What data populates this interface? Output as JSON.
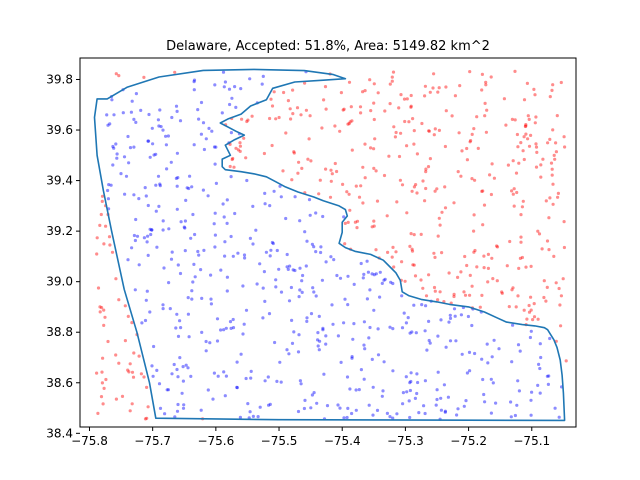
{
  "chart_data": {
    "type": "scatter",
    "title": "Delaware, Accepted: 51.8%, Area: 5149.82 km^2",
    "xlabel": "",
    "ylabel": "",
    "xlim": [
      -75.815,
      -75.03
    ],
    "ylim": [
      38.425,
      39.885
    ],
    "x_ticks": [
      -75.8,
      -75.7,
      -75.6,
      -75.5,
      -75.4,
      -75.3,
      -75.2,
      -75.1
    ],
    "y_ticks": [
      38.4,
      38.6,
      38.8,
      39.0,
      39.2,
      39.4,
      39.6,
      39.8
    ],
    "x_tick_labels": [
      "−75.8",
      "−75.7",
      "−75.6",
      "−75.5",
      "−75.4",
      "−75.3",
      "−75.2",
      "−75.1"
    ],
    "y_tick_labels": [
      "38.4",
      "38.6",
      "38.8",
      "39.0",
      "39.2",
      "39.4",
      "39.6",
      "39.8"
    ],
    "grid": false,
    "colors": {
      "accepted": "#0000ff",
      "rejected": "#ff0000",
      "boundary": "#1f77b4"
    },
    "point_alpha": 0.45,
    "boundary": [
      [
        -75.788,
        39.723
      ],
      [
        -75.772,
        39.723
      ],
      [
        -75.74,
        39.77
      ],
      [
        -75.69,
        39.81
      ],
      [
        -75.62,
        39.836
      ],
      [
        -75.54,
        39.84
      ],
      [
        -75.46,
        39.835
      ],
      [
        -75.415,
        39.82
      ],
      [
        -75.395,
        39.803
      ],
      [
        -75.43,
        39.797
      ],
      [
        -75.475,
        39.79
      ],
      [
        -75.51,
        39.765
      ],
      [
        -75.52,
        39.72
      ],
      [
        -75.545,
        39.695
      ],
      [
        -75.56,
        39.663
      ],
      [
        -75.58,
        39.645
      ],
      [
        -75.593,
        39.628
      ],
      [
        -75.568,
        39.595
      ],
      [
        -75.555,
        39.58
      ],
      [
        -75.57,
        39.562
      ],
      [
        -75.585,
        39.54
      ],
      [
        -75.577,
        39.5
      ],
      [
        -75.59,
        39.485
      ],
      [
        -75.59,
        39.455
      ],
      [
        -75.585,
        39.443
      ],
      [
        -75.56,
        39.435
      ],
      [
        -75.54,
        39.427
      ],
      [
        -75.52,
        39.415
      ],
      [
        -75.505,
        39.395
      ],
      [
        -75.49,
        39.375
      ],
      [
        -75.47,
        39.355
      ],
      [
        -75.445,
        39.335
      ],
      [
        -75.43,
        39.32
      ],
      [
        -75.405,
        39.3
      ],
      [
        -75.395,
        39.285
      ],
      [
        -75.392,
        39.26
      ],
      [
        -75.4,
        39.235
      ],
      [
        -75.4,
        39.195
      ],
      [
        -75.405,
        39.152
      ],
      [
        -75.395,
        39.135
      ],
      [
        -75.38,
        39.12
      ],
      [
        -75.355,
        39.108
      ],
      [
        -75.335,
        39.085
      ],
      [
        -75.325,
        39.06
      ],
      [
        -75.315,
        39.035
      ],
      [
        -75.308,
        39.005
      ],
      [
        -75.305,
        38.96
      ],
      [
        -75.295,
        38.945
      ],
      [
        -75.275,
        38.93
      ],
      [
        -75.25,
        38.92
      ],
      [
        -75.23,
        38.91
      ],
      [
        -75.2,
        38.9
      ],
      [
        -75.175,
        38.88
      ],
      [
        -75.155,
        38.857
      ],
      [
        -75.14,
        38.84
      ],
      [
        -75.115,
        38.83
      ],
      [
        -75.095,
        38.825
      ],
      [
        -75.08,
        38.818
      ],
      [
        -75.075,
        38.81
      ],
      [
        -75.07,
        38.79
      ],
      [
        -75.065,
        38.77
      ],
      [
        -75.06,
        38.74
      ],
      [
        -75.055,
        38.69
      ],
      [
        -75.052,
        38.63
      ],
      [
        -75.05,
        38.56
      ],
      [
        -75.048,
        38.451
      ],
      [
        -75.2,
        38.452
      ],
      [
        -75.35,
        38.453
      ],
      [
        -75.5,
        38.454
      ],
      [
        -75.695,
        38.46
      ],
      [
        -75.705,
        38.6
      ],
      [
        -75.725,
        38.8
      ],
      [
        -75.745,
        38.97
      ],
      [
        -75.765,
        39.2
      ],
      [
        -75.778,
        39.36
      ],
      [
        -75.788,
        39.5
      ],
      [
        -75.792,
        39.65
      ],
      [
        -75.788,
        39.723
      ]
    ]
  }
}
